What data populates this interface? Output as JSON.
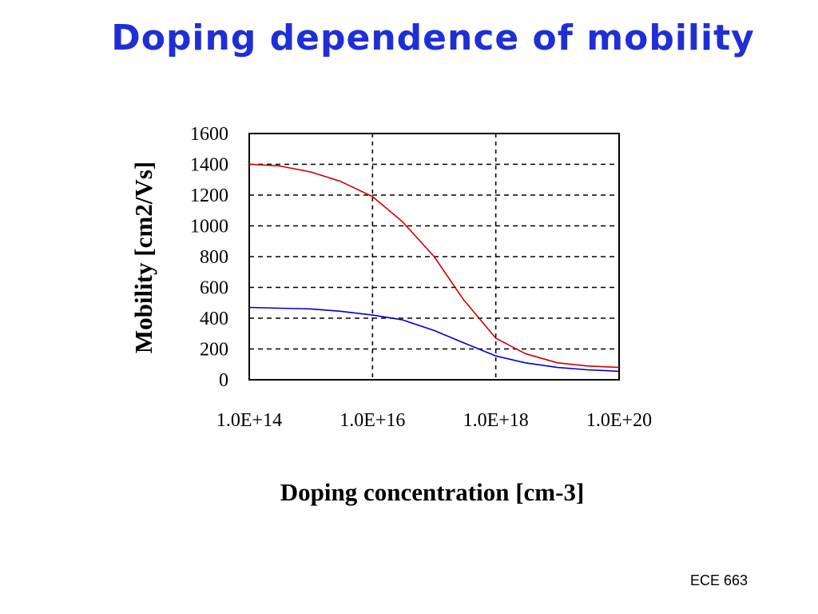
{
  "slide": {
    "title": "Doping dependence of mobility",
    "footer": "ECE 663"
  },
  "chart_data": {
    "type": "line",
    "xlabel": "Doping concentration [cm-3]",
    "ylabel": "Mobility [cm2/Vs]",
    "x_scale": "log",
    "xlim": [
      100000000000000.0,
      1e+20
    ],
    "ylim": [
      0,
      1600
    ],
    "x_ticks": [
      "1.0E+14",
      "1.0E+16",
      "1.0E+18",
      "1.0E+20"
    ],
    "x_tick_values": [
      100000000000000.0,
      1e+16,
      1e+18,
      1e+20
    ],
    "y_ticks": [
      "0",
      "200",
      "400",
      "600",
      "800",
      "1000",
      "1200",
      "1400",
      "1600"
    ],
    "y_tick_values": [
      0,
      200,
      400,
      600,
      800,
      1000,
      1200,
      1400,
      1600
    ],
    "grid": true,
    "series": [
      {
        "color": "#cc0000",
        "x": [
          100000000000000.0,
          300000000000000.0,
          1000000000000000.0,
          3000000000000000.0,
          1e+16,
          3e+16,
          1e+17,
          3e+17,
          1e+18,
          3e+18,
          1e+19,
          3e+19,
          1e+20
        ],
        "y": [
          1400,
          1390,
          1350,
          1290,
          1190,
          1030,
          800,
          520,
          270,
          170,
          110,
          90,
          80
        ]
      },
      {
        "color": "#0000cc",
        "x": [
          100000000000000.0,
          300000000000000.0,
          1000000000000000.0,
          3000000000000000.0,
          1e+16,
          3e+16,
          1e+17,
          3e+17,
          1e+18,
          3e+18,
          1e+19,
          3e+19,
          1e+20
        ],
        "y": [
          470,
          465,
          460,
          445,
          420,
          390,
          320,
          240,
          155,
          110,
          80,
          65,
          55
        ]
      }
    ]
  }
}
